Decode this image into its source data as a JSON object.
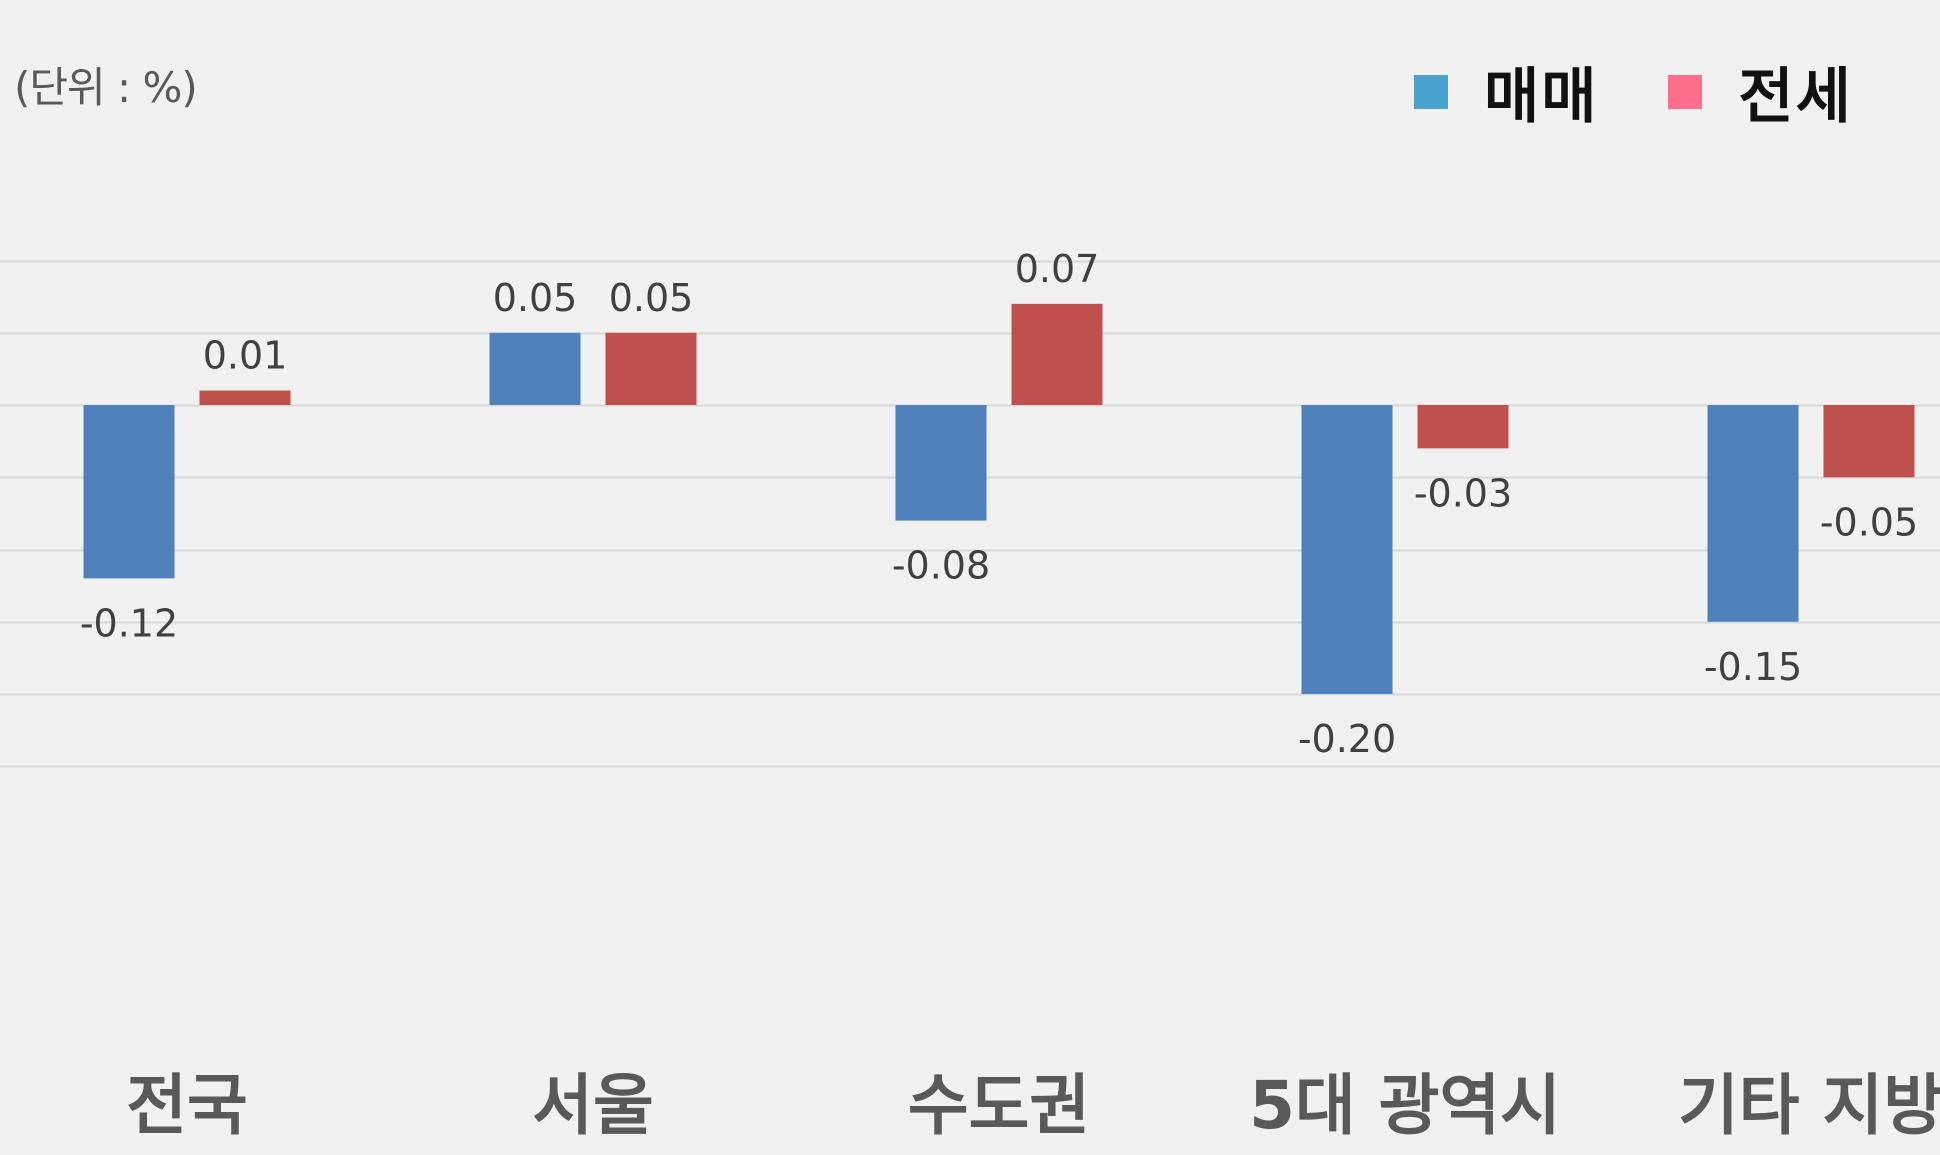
{
  "unit_label": "(단위 : %)",
  "legend": {
    "items": [
      {
        "label": "매매",
        "color": "#4aa3cf"
      },
      {
        "label": "전세",
        "color": "#ff6f8c"
      }
    ]
  },
  "colors": {
    "sale_bar": "#4f81bd",
    "jeonse_bar": "#c0504d",
    "grid": "#d9d9d9",
    "label": "#404040",
    "category": "#595959"
  },
  "chart_data": {
    "type": "bar",
    "categories": [
      "전국",
      "서울",
      "수도권",
      "5대 광역시",
      "기타 지방"
    ],
    "series": [
      {
        "name": "매매",
        "values": [
          -0.12,
          0.05,
          -0.08,
          -0.2,
          -0.15
        ],
        "labels": [
          "-0.12",
          "0.05",
          "-0.08",
          "-0.20",
          "-0.15"
        ]
      },
      {
        "name": "전세",
        "values": [
          0.01,
          0.05,
          0.07,
          -0.03,
          -0.05
        ],
        "labels": [
          "0.01",
          "0.05",
          "0.07",
          "-0.03",
          "-0.05"
        ]
      }
    ],
    "ylim": [
      -0.25,
      0.1
    ],
    "grid": true,
    "legend_position": "top-right"
  }
}
